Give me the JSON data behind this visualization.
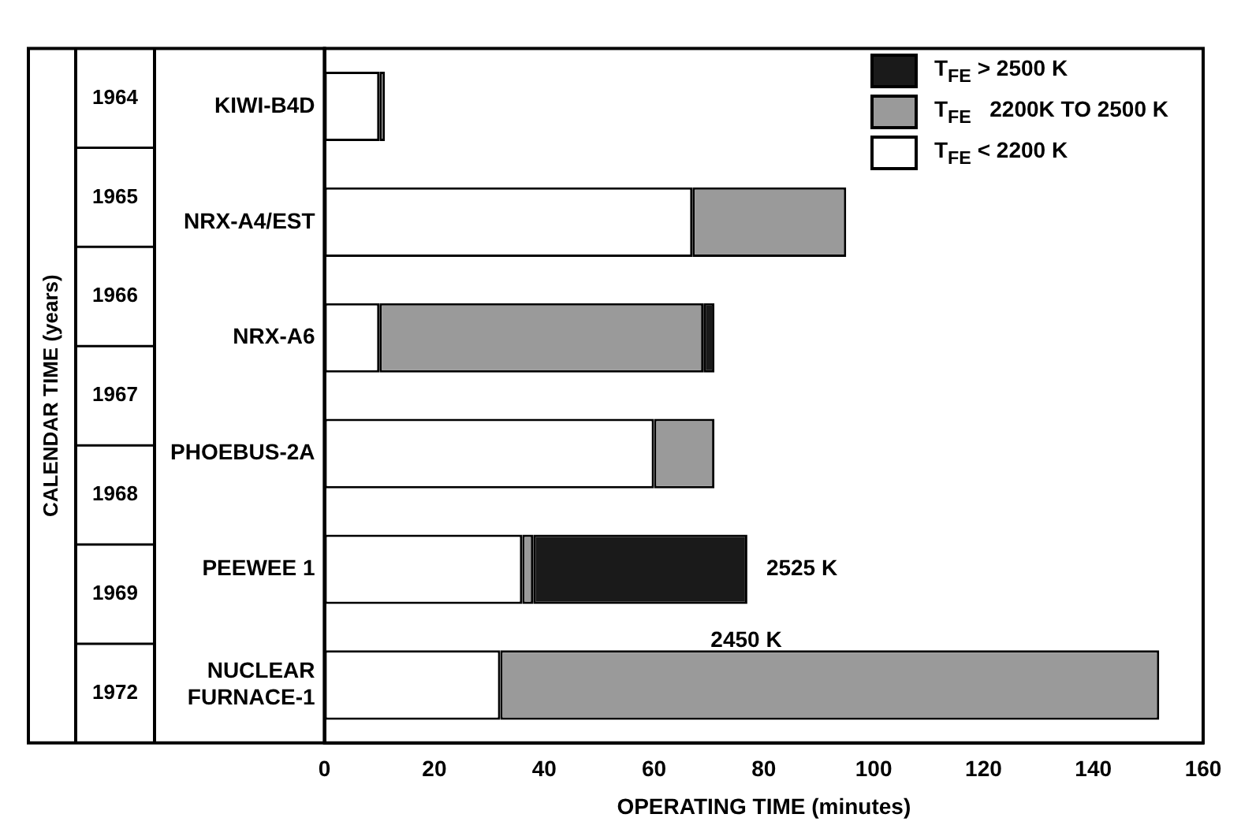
{
  "chart_data": {
    "type": "bar",
    "orientation": "horizontal",
    "stacked": true,
    "categories": [
      "KIWI-B4D",
      "NRX-A4/EST",
      "NRX-A6",
      "PHOEBUS-2A",
      "PEEWEE 1",
      "NUCLEAR FURNACE-1"
    ],
    "series": [
      {
        "name": "T$_{FE}$ < 2200 K",
        "color": "#ffffff",
        "values": [
          10,
          67,
          10,
          60,
          36,
          32
        ]
      },
      {
        "name": "T$_{FE}$   2200K TO 2500 K",
        "color": "#9a9a9a",
        "values": [
          1,
          28,
          59,
          11,
          2,
          120
        ]
      },
      {
        "name": "T$_{FE}$ > 2500 K",
        "color": "#1a1a1a",
        "values": [
          null,
          null,
          2,
          null,
          39,
          null
        ]
      }
    ],
    "xlabel": "OPERATING TIME (minutes)",
    "xlim": [
      0,
      160
    ],
    "xticks": [
      0,
      20,
      40,
      60,
      80,
      100,
      120,
      140,
      160
    ],
    "legend": "top right",
    "grid": false,
    "annotations": [
      "CALENDAR TIME (years)",
      "1964",
      "1965",
      "1966",
      "1967",
      "1968",
      "1969",
      "1972",
      {
        "text": "2525 K",
        "x": 77,
        "y": "PEEWEE 1"
      },
      "2450 K"
    ]
  }
}
